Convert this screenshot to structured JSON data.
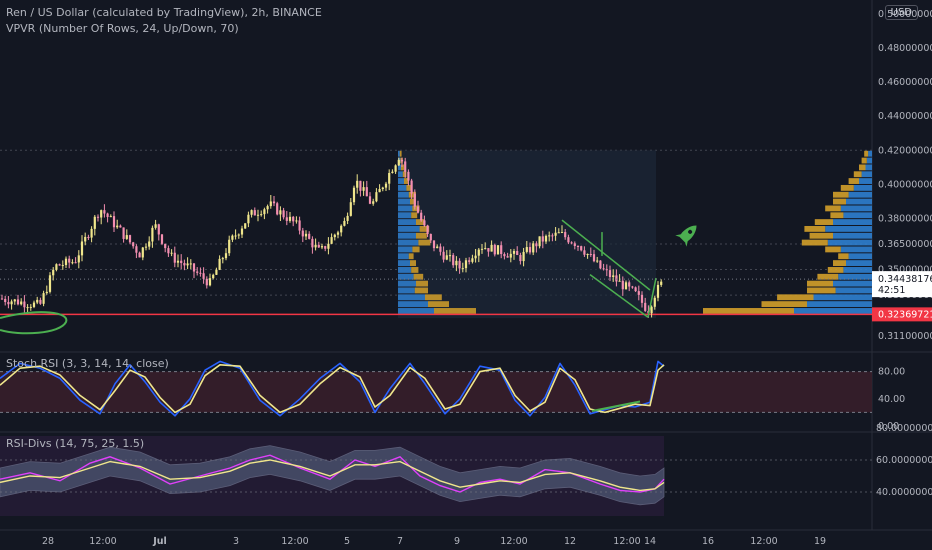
{
  "header": {
    "title": "Ren / US Dollar (calculated by TradingView), 2h, BINANCE",
    "indicator": "VPVR (Number Of Rows, 24, Up/Down, 70)"
  },
  "currency_badge": "USD",
  "chart_data": [
    {
      "type": "candlestick",
      "title": "Ren / US Dollar (calculated by TradingView), 2h, BINANCE",
      "x_ticks": [
        "28",
        "12:00",
        "Jul",
        "3",
        "12:00",
        "5",
        "7",
        "9",
        "12:00",
        "12",
        "12:00",
        "14",
        "16",
        "12:00",
        "19"
      ],
      "y_ticks": [
        "0.50000000",
        "0.48000000",
        "0.46000000",
        "0.44000000",
        "0.42000000",
        "0.40000000",
        "0.38000000",
        "0.36500000",
        "0.35000000",
        "0.33500000",
        "0.31100000"
      ],
      "ylim": [
        0.31,
        0.5
      ],
      "close_path": [
        [
          0,
          0.333
        ],
        [
          20,
          0.331
        ],
        [
          40,
          0.329
        ],
        [
          55,
          0.352
        ],
        [
          75,
          0.355
        ],
        [
          100,
          0.386
        ],
        [
          120,
          0.373
        ],
        [
          140,
          0.359
        ],
        [
          155,
          0.376
        ],
        [
          170,
          0.358
        ],
        [
          190,
          0.351
        ],
        [
          210,
          0.342
        ],
        [
          230,
          0.366
        ],
        [
          250,
          0.382
        ],
        [
          270,
          0.388
        ],
        [
          295,
          0.377
        ],
        [
          320,
          0.36
        ],
        [
          345,
          0.378
        ],
        [
          355,
          0.403
        ],
        [
          372,
          0.388
        ],
        [
          385,
          0.402
        ],
        [
          400,
          0.418
        ],
        [
          415,
          0.388
        ],
        [
          430,
          0.366
        ],
        [
          445,
          0.358
        ],
        [
          460,
          0.351
        ],
        [
          480,
          0.364
        ],
        [
          500,
          0.361
        ],
        [
          520,
          0.357
        ],
        [
          540,
          0.367
        ],
        [
          560,
          0.371
        ],
        [
          580,
          0.364
        ],
        [
          600,
          0.351
        ],
        [
          620,
          0.342
        ],
        [
          635,
          0.336
        ],
        [
          648,
          0.326
        ],
        [
          655,
          0.336
        ],
        [
          662,
          0.342
        ]
      ],
      "last_price": "0.34438176",
      "countdown": "42:51",
      "support_level": "0.32369721",
      "colors": {
        "up": "#f0e68c",
        "down": "#f48fb1",
        "support": "#f23645",
        "trend": "#4caf50",
        "vp_up": "#2f7fd0",
        "vp_down": "#d4a02a"
      },
      "volume_profile": {
        "rows": 24,
        "price_min": 0.3237,
        "price_max": 0.42,
        "up": [
          60,
          50,
          45,
          28,
          30,
          26,
          22,
          20,
          18,
          24,
          34,
          30,
          36,
          30,
          22,
          24,
          20,
          18,
          14,
          10,
          8,
          5,
          4,
          3
        ],
        "down": [
          70,
          35,
          28,
          22,
          20,
          16,
          12,
          10,
          8,
          12,
          20,
          18,
          16,
          14,
          10,
          12,
          10,
          12,
          10,
          8,
          6,
          5,
          4,
          3
        ]
      }
    },
    {
      "type": "line",
      "title": "Stoch RSI (3, 3, 14, 14, close)",
      "y_ticks": [
        "80.00",
        "40.00",
        "0.00"
      ],
      "ylim": [
        0,
        100
      ],
      "bands": [
        20,
        80
      ],
      "series": [
        {
          "color": "#2962ff",
          "values": [
            [
              0,
              70
            ],
            [
              20,
              92
            ],
            [
              40,
              85
            ],
            [
              60,
              70
            ],
            [
              80,
              38
            ],
            [
              100,
              18
            ],
            [
              115,
              62
            ],
            [
              130,
              90
            ],
            [
              145,
              65
            ],
            [
              160,
              35
            ],
            [
              175,
              15
            ],
            [
              190,
              40
            ],
            [
              205,
              82
            ],
            [
              220,
              95
            ],
            [
              240,
              85
            ],
            [
              260,
              38
            ],
            [
              280,
              15
            ],
            [
              300,
              40
            ],
            [
              320,
              70
            ],
            [
              340,
              92
            ],
            [
              360,
              65
            ],
            [
              375,
              20
            ],
            [
              390,
              55
            ],
            [
              410,
              92
            ],
            [
              425,
              62
            ],
            [
              445,
              18
            ],
            [
              460,
              40
            ],
            [
              480,
              88
            ],
            [
              500,
              82
            ],
            [
              515,
              38
            ],
            [
              530,
              15
            ],
            [
              545,
              42
            ],
            [
              560,
              92
            ],
            [
              575,
              60
            ],
            [
              590,
              18
            ],
            [
              605,
              24
            ],
            [
              620,
              30
            ],
            [
              635,
              28
            ],
            [
              650,
              35
            ],
            [
              658,
              95
            ],
            [
              664,
              88
            ]
          ]
        },
        {
          "color": "#f0e68c",
          "values": [
            [
              0,
              60
            ],
            [
              20,
              85
            ],
            [
              40,
              88
            ],
            [
              60,
              75
            ],
            [
              80,
              45
            ],
            [
              100,
              24
            ],
            [
              115,
              52
            ],
            [
              130,
              82
            ],
            [
              145,
              72
            ],
            [
              160,
              42
            ],
            [
              175,
              20
            ],
            [
              190,
              32
            ],
            [
              205,
              74
            ],
            [
              220,
              90
            ],
            [
              240,
              88
            ],
            [
              260,
              45
            ],
            [
              280,
              20
            ],
            [
              300,
              32
            ],
            [
              320,
              62
            ],
            [
              340,
              86
            ],
            [
              360,
              72
            ],
            [
              375,
              28
            ],
            [
              390,
              45
            ],
            [
              410,
              86
            ],
            [
              425,
              70
            ],
            [
              445,
              25
            ],
            [
              460,
              32
            ],
            [
              480,
              80
            ],
            [
              500,
              85
            ],
            [
              515,
              45
            ],
            [
              530,
              22
            ],
            [
              545,
              35
            ],
            [
              560,
              85
            ],
            [
              575,
              68
            ],
            [
              590,
              25
            ],
            [
              605,
              20
            ],
            [
              620,
              26
            ],
            [
              635,
              32
            ],
            [
              650,
              30
            ],
            [
              658,
              82
            ],
            [
              664,
              90
            ]
          ]
        }
      ]
    },
    {
      "type": "line",
      "title": "RSI-Divs (14, 75, 25, 1.5)",
      "y_ticks": [
        "80.00000000",
        "60.00000000",
        "40.00000000"
      ],
      "ylim": [
        25,
        80
      ],
      "series": [
        {
          "color": "#e040fb",
          "values": [
            [
              0,
              48
            ],
            [
              30,
              52
            ],
            [
              60,
              47
            ],
            [
              90,
              58
            ],
            [
              110,
              62
            ],
            [
              140,
              55
            ],
            [
              170,
              45
            ],
            [
              200,
              50
            ],
            [
              230,
              55
            ],
            [
              250,
              60
            ],
            [
              270,
              63
            ],
            [
              300,
              55
            ],
            [
              330,
              48
            ],
            [
              355,
              60
            ],
            [
              375,
              56
            ],
            [
              400,
              62
            ],
            [
              420,
              50
            ],
            [
              440,
              44
            ],
            [
              460,
              40
            ],
            [
              480,
              46
            ],
            [
              500,
              48
            ],
            [
              520,
              45
            ],
            [
              545,
              54
            ],
            [
              570,
              52
            ],
            [
              600,
              45
            ],
            [
              620,
              41
            ],
            [
              640,
              40
            ],
            [
              655,
              42
            ],
            [
              664,
              48
            ]
          ]
        },
        {
          "color": "#f0e68c",
          "values": [
            [
              0,
              46
            ],
            [
              30,
              50
            ],
            [
              60,
              49
            ],
            [
              90,
              55
            ],
            [
              110,
              59
            ],
            [
              140,
              56
            ],
            [
              170,
              48
            ],
            [
              200,
              49
            ],
            [
              230,
              53
            ],
            [
              250,
              58
            ],
            [
              270,
              60
            ],
            [
              300,
              56
            ],
            [
              330,
              50
            ],
            [
              355,
              57
            ],
            [
              375,
              57
            ],
            [
              400,
              59
            ],
            [
              420,
              53
            ],
            [
              440,
              47
            ],
            [
              460,
              43
            ],
            [
              480,
              45
            ],
            [
              500,
              47
            ],
            [
              520,
              46
            ],
            [
              545,
              51
            ],
            [
              570,
              52
            ],
            [
              600,
              47
            ],
            [
              620,
              43
            ],
            [
              640,
              41
            ],
            [
              655,
              42
            ],
            [
              664,
              46
            ]
          ]
        }
      ]
    }
  ]
}
